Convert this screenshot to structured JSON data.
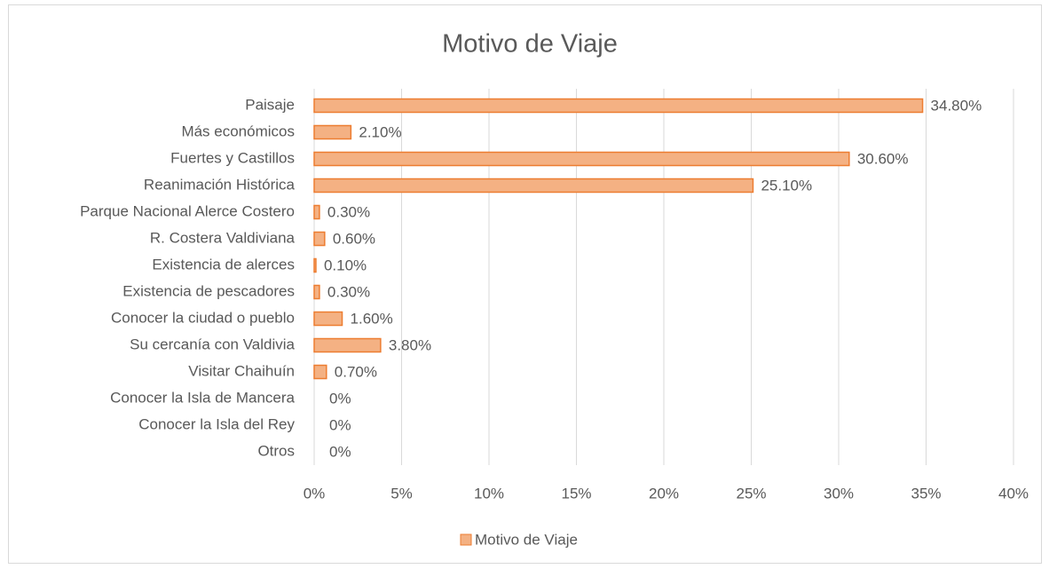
{
  "chart_data": {
    "type": "barh",
    "title": "Motivo de Viaje",
    "categories": [
      "Paisaje",
      "Más económicos",
      "Fuertes y Castillos",
      "Reanimación Histórica",
      "Parque Nacional Alerce Costero",
      "R. Costera Valdiviana",
      "Existencia de alerces",
      "Existencia de pescadores",
      "Conocer la ciudad o pueblo",
      "Su cercanía con Valdivia",
      "Visitar Chaihuín",
      "Conocer la Isla de Mancera",
      "Conocer la Isla del Rey",
      "Otros"
    ],
    "series": [
      {
        "name": "Motivo de Viaje",
        "color": "#f4b183",
        "edge_color": "#ed7d31",
        "values": [
          34.8,
          2.1,
          30.6,
          25.1,
          0.3,
          0.6,
          0.1,
          0.3,
          1.6,
          3.8,
          0.7,
          0,
          0,
          0
        ],
        "value_labels": [
          "34.80%",
          "2.10%",
          "30.60%",
          "25.10%",
          "0.30%",
          "0.60%",
          "0.10%",
          "0.30%",
          "1.60%",
          "3.80%",
          "0.70%",
          "0%",
          "0%",
          "0%"
        ]
      }
    ],
    "xlim": [
      0,
      40
    ],
    "xticks": [
      {
        "value": 0,
        "label": "0%"
      },
      {
        "value": 5,
        "label": "5%"
      },
      {
        "value": 10,
        "label": "10%"
      },
      {
        "value": 15,
        "label": "15%"
      },
      {
        "value": 20,
        "label": "20%"
      },
      {
        "value": 25,
        "label": "25%"
      },
      {
        "value": 30,
        "label": "30%"
      },
      {
        "value": 35,
        "label": "35%"
      },
      {
        "value": 40,
        "label": "40%"
      }
    ],
    "grid": true,
    "legend": "bottom"
  }
}
